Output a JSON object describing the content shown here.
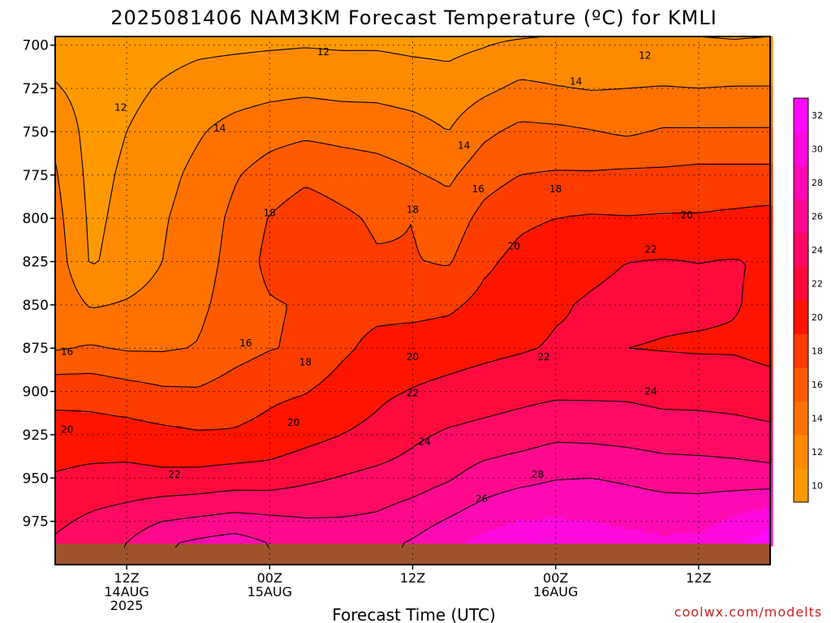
{
  "chart_data": {
    "type": "heatmap",
    "title": "2025081406 NAM3KM Forecast Temperature (ºC) for KMLI",
    "xlabel": "Forecast Time (UTC)",
    "ylabel": "",
    "credit": "coolwx.com/modelts",
    "y_ticks": [
      "700",
      "725",
      "750",
      "775",
      "800",
      "825",
      "850",
      "875",
      "900",
      "925",
      "950",
      "975"
    ],
    "y_values": [
      700,
      725,
      750,
      775,
      800,
      825,
      850,
      875,
      900,
      925,
      950,
      975
    ],
    "ylim": [
      1000,
      695
    ],
    "x_ticks": [
      {
        "l1": "12Z",
        "l2": "14AUG",
        "l3": "2025",
        "hour": 6
      },
      {
        "l1": "00Z",
        "l2": "15AUG",
        "l3": "",
        "hour": 18
      },
      {
        "l1": "12Z",
        "l2": "",
        "l3": "",
        "hour": 30
      },
      {
        "l1": "00Z",
        "l2": "16AUG",
        "l3": "",
        "hour": 42
      },
      {
        "l1": "12Z",
        "l2": "",
        "l3": "",
        "hour": 54
      }
    ],
    "xlim": [
      0,
      60
    ],
    "grid": true,
    "colorbar": {
      "labels": [
        "10",
        "12",
        "14",
        "16",
        "18",
        "20",
        "22",
        "24",
        "26",
        "28",
        "30",
        "32"
      ],
      "levels": [
        10,
        12,
        14,
        16,
        18,
        20,
        22,
        24,
        26,
        28,
        30,
        32
      ],
      "colors": [
        "#ff9900",
        "#ff8a00",
        "#ff7200",
        "#ff5a00",
        "#ff3c00",
        "#ff1400",
        "#ff0a3c",
        "#ff0a64",
        "#ff0a8c",
        "#ff0ab4",
        "#ff0adc",
        "#ff0aff"
      ]
    },
    "contours": [
      {
        "level": 12,
        "label_hours": [
          5.5,
          22,
          49
        ]
      },
      {
        "level": 14,
        "label_hours": [
          13.5,
          43.5,
          34.5
        ]
      },
      {
        "level": 16,
        "label_hours": [
          1,
          16,
          35.5
        ]
      },
      {
        "level": 18,
        "label_hours": [
          18,
          30,
          42,
          21
        ]
      },
      {
        "level": 20,
        "label_hours": [
          1,
          20,
          30,
          38,
          53
        ]
      },
      {
        "level": 22,
        "label_hours": [
          10,
          30,
          41,
          50
        ]
      },
      {
        "level": 24,
        "label_hours": [
          31,
          50
        ]
      },
      {
        "level": 26,
        "label_hours": [
          36
        ]
      },
      {
        "level": 28,
        "label_hours": [
          40
        ]
      }
    ],
    "contour_labels": [
      {
        "text": "12",
        "hour": 5.5,
        "p": 736
      },
      {
        "text": "12",
        "hour": 22.5,
        "p": 704
      },
      {
        "text": "12",
        "hour": 49.5,
        "p": 706
      },
      {
        "text": "14",
        "hour": 13.8,
        "p": 748
      },
      {
        "text": "14",
        "hour": 43.7,
        "p": 721
      },
      {
        "text": "14",
        "hour": 34.3,
        "p": 758
      },
      {
        "text": "16",
        "hour": 1,
        "p": 877
      },
      {
        "text": "16",
        "hour": 16,
        "p": 872
      },
      {
        "text": "16",
        "hour": 35.5,
        "p": 783
      },
      {
        "text": "18",
        "hour": 18,
        "p": 797
      },
      {
        "text": "18",
        "hour": 30,
        "p": 795
      },
      {
        "text": "18",
        "hour": 42,
        "p": 783
      },
      {
        "text": "18",
        "hour": 21,
        "p": 883
      },
      {
        "text": "20",
        "hour": 1,
        "p": 922
      },
      {
        "text": "20",
        "hour": 20,
        "p": 918
      },
      {
        "text": "20",
        "hour": 30,
        "p": 880
      },
      {
        "text": "20",
        "hour": 38.5,
        "p": 816
      },
      {
        "text": "20",
        "hour": 53,
        "p": 798
      },
      {
        "text": "22",
        "hour": 10,
        "p": 948
      },
      {
        "text": "22",
        "hour": 30,
        "p": 901
      },
      {
        "text": "22",
        "hour": 41,
        "p": 880
      },
      {
        "text": "22",
        "hour": 50,
        "p": 818
      },
      {
        "text": "24",
        "hour": 31,
        "p": 929
      },
      {
        "text": "24",
        "hour": 50,
        "p": 900
      },
      {
        "text": "26",
        "hour": 35.8,
        "p": 962
      },
      {
        "text": "28",
        "hour": 40.5,
        "p": 948
      }
    ],
    "isotherm_levels_hpa": {
      "pressures": [
        695,
        700,
        725,
        750,
        775,
        800,
        825,
        850,
        875,
        900,
        925,
        950,
        975,
        990
      ],
      "times": [
        0,
        3,
        6,
        9,
        12,
        15,
        18,
        21,
        24,
        27,
        30,
        33,
        36,
        39,
        42,
        45,
        48,
        51,
        54,
        57,
        60
      ],
      "temps": [
        [
          10.5,
          10.6,
          10.6,
          10.9,
          11.2,
          11.2,
          11.3,
          11.3,
          11.2,
          11.2,
          11.0,
          11.2,
          11.5,
          11.8,
          12.1,
          12.1,
          12.2,
          12.1,
          12.0,
          11.9,
          12.0
        ],
        [
          11.0,
          11.1,
          11.1,
          11.3,
          11.6,
          11.7,
          11.8,
          11.9,
          11.8,
          11.8,
          11.6,
          11.5,
          11.9,
          12.5,
          12.7,
          12.5,
          12.4,
          12.4,
          12.3,
          12.2,
          12.3
        ],
        [
          12.2,
          11.1,
          11.5,
          12.2,
          12.8,
          13.1,
          13.4,
          13.6,
          13.4,
          13.4,
          13.1,
          12.8,
          13.6,
          14.4,
          14.1,
          13.9,
          14.0,
          14.1,
          14.0,
          14.1,
          14.1
        ],
        [
          13.6,
          11.2,
          12.0,
          12.9,
          13.8,
          14.7,
          15.3,
          15.6,
          15.4,
          15.2,
          14.8,
          14.0,
          15.6,
          16.5,
          16.4,
          16.1,
          15.7,
          16.2,
          16.2,
          16.2,
          16.2
        ],
        [
          14.2,
          11.4,
          12.3,
          13.4,
          14.5,
          15.8,
          16.8,
          17.6,
          17.1,
          16.8,
          16.2,
          15.6,
          17.2,
          18.0,
          18.2,
          18.2,
          18.4,
          18.4,
          18.6,
          18.6,
          18.6
        ],
        [
          14.7,
          11.6,
          12.5,
          13.8,
          14.9,
          16.4,
          18.1,
          19.1,
          18.4,
          17.7,
          18.0,
          16.9,
          18.6,
          19.6,
          20.0,
          20.2,
          20.1,
          20.2,
          20.2,
          20.4,
          20.6
        ],
        [
          15.1,
          11.8,
          12.7,
          14.0,
          15.2,
          16.6,
          18.6,
          19.4,
          19.0,
          18.2,
          18.1,
          17.8,
          19.6,
          20.6,
          21.2,
          21.6,
          22.0,
          22.1,
          22.0,
          22.1,
          21.8
        ],
        [
          15.5,
          13.8,
          14.2,
          14.8,
          15.6,
          16.8,
          17.8,
          18.2,
          19.2,
          19.4,
          19.3,
          19.6,
          20.6,
          21.1,
          21.8,
          22.2,
          22.5,
          22.3,
          22.3,
          22.1,
          21.6
        ],
        [
          15.8,
          16.2,
          15.8,
          15.8,
          16.1,
          17.2,
          17.9,
          18.3,
          19.6,
          20.6,
          21.0,
          21.2,
          21.5,
          21.8,
          22.2,
          22.2,
          22.0,
          21.9,
          21.8,
          21.8,
          21.4
        ],
        [
          19.4,
          19.3,
          18.8,
          18.3,
          18.2,
          18.9,
          19.6,
          19.9,
          20.8,
          21.6,
          22.1,
          22.5,
          22.9,
          23.3,
          23.6,
          23.6,
          23.6,
          23.3,
          23.3,
          23.1,
          22.8
        ],
        [
          20.8,
          20.8,
          20.8,
          20.5,
          20.2,
          20.2,
          20.6,
          21.3,
          22.0,
          22.5,
          23.6,
          24.3,
          24.7,
          25.1,
          25.6,
          25.5,
          25.3,
          25.0,
          24.9,
          24.8,
          24.5
        ],
        [
          22.2,
          22.6,
          22.7,
          22.5,
          22.6,
          22.9,
          23.0,
          23.6,
          24.1,
          24.6,
          25.0,
          25.8,
          26.9,
          27.4,
          27.9,
          28.0,
          27.7,
          27.3,
          27.2,
          27.0,
          26.8
        ],
        [
          23.6,
          24.4,
          25.0,
          26.0,
          26.4,
          26.8,
          26.5,
          26.2,
          26.2,
          26.4,
          27.2,
          28.2,
          29.2,
          30.1,
          30.2,
          30.0,
          29.6,
          29.4,
          29.4,
          30.4,
          31.6
        ],
        [
          24.4,
          25.4,
          26.2,
          28.0,
          28.8,
          29.4,
          28.2,
          27.4,
          27.0,
          27.6,
          28.4,
          29.6,
          31.0,
          32.2,
          32.3,
          31.8,
          31.0,
          30.5,
          30.8,
          31.9,
          33.2
        ]
      ]
    },
    "ground_level_hpa": 988
  }
}
